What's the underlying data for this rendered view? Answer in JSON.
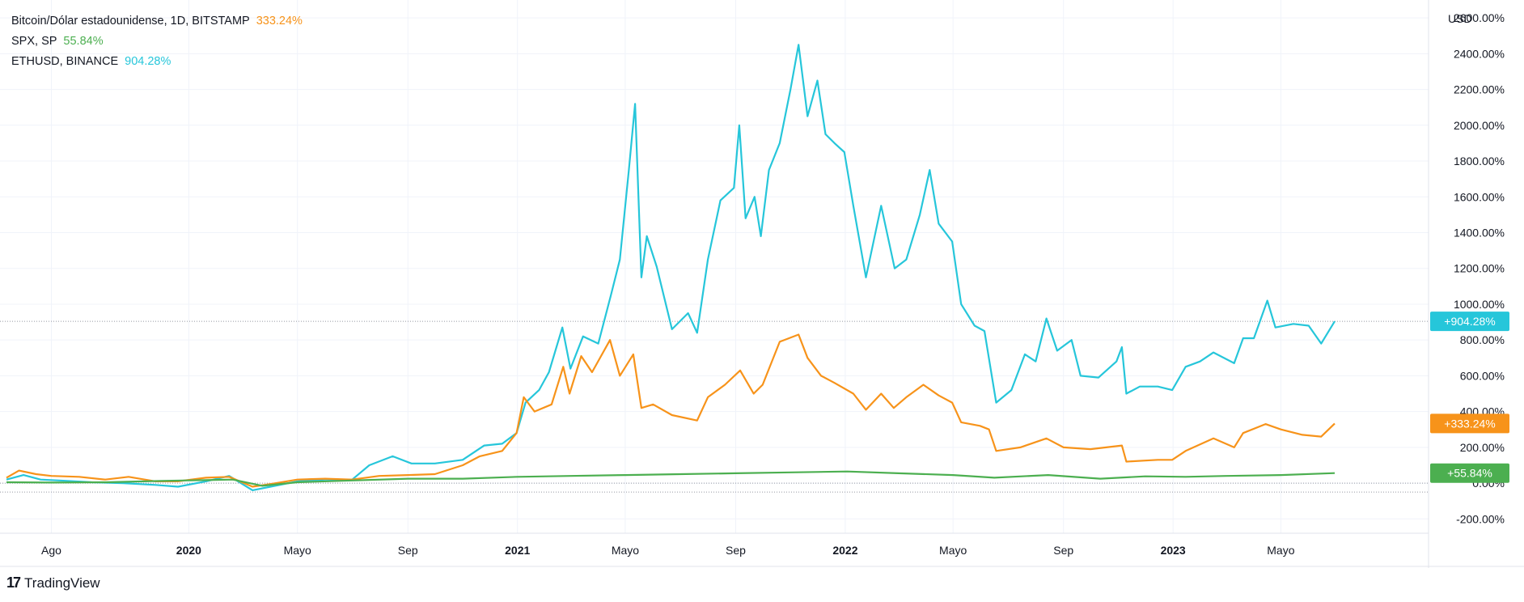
{
  "legend": [
    {
      "label": "Bitcoin/Dólar estadounidense, 1D, BITSTAMP",
      "value": "333.24%",
      "color": "#f7931a"
    },
    {
      "label": "SPX, SP",
      "value": "55.84%",
      "color": "#4caf50"
    },
    {
      "label": "ETHUSD, BINANCE",
      "value": "904.28%",
      "color": "#26c6da"
    }
  ],
  "axis_unit": "USD",
  "brand": {
    "logo": "17",
    "name": "TradingView"
  },
  "chart_data": {
    "type": "line",
    "title": "",
    "xlabel": "",
    "ylabel": "USD",
    "ylim": [
      -280,
      2700
    ],
    "y_ticks": [
      "2600.00%",
      "2400.00%",
      "2200.00%",
      "2000.00%",
      "1800.00%",
      "1600.00%",
      "1400.00%",
      "1200.00%",
      "1000.00%",
      "800.00%",
      "600.00%",
      "400.00%",
      "200.00%",
      "0.00%",
      "-200.00%"
    ],
    "y_tick_values": [
      2600,
      2400,
      2200,
      2000,
      1800,
      1600,
      1400,
      1200,
      1000,
      800,
      600,
      400,
      200,
      0,
      -200
    ],
    "x_range": [
      "2019-06-12",
      "2023-06-30"
    ],
    "x_ticks": [
      {
        "label": "Ago",
        "date": "2019-08-01",
        "bold": false
      },
      {
        "label": "2020",
        "date": "2020-01-01",
        "bold": true
      },
      {
        "label": "Mayo",
        "date": "2020-05-01",
        "bold": false
      },
      {
        "label": "Sep",
        "date": "2020-09-01",
        "bold": false
      },
      {
        "label": "2021",
        "date": "2021-01-01",
        "bold": true
      },
      {
        "label": "Mayo",
        "date": "2021-05-01",
        "bold": false
      },
      {
        "label": "Sep",
        "date": "2021-09-01",
        "bold": false
      },
      {
        "label": "2022",
        "date": "2022-01-01",
        "bold": true
      },
      {
        "label": "Mayo",
        "date": "2022-05-01",
        "bold": false
      },
      {
        "label": "Sep",
        "date": "2022-09-01",
        "bold": false
      },
      {
        "label": "2023",
        "date": "2023-01-01",
        "bold": true
      },
      {
        "label": "Mayo",
        "date": "2023-05-01",
        "bold": false
      }
    ],
    "reference_lines": [
      {
        "value": 0,
        "style": "dotted"
      },
      {
        "value": -50,
        "style": "dotted"
      },
      {
        "value": 904.28,
        "style": "dotted"
      }
    ],
    "series": [
      {
        "name": "ETHUSD, BINANCE",
        "color": "#26c6da",
        "last_label": "+904.28%",
        "points": [
          [
            "2019-06-12",
            20
          ],
          [
            "2019-07-01",
            45
          ],
          [
            "2019-07-20",
            20
          ],
          [
            "2019-08-10",
            15
          ],
          [
            "2019-09-15",
            5
          ],
          [
            "2019-10-20",
            0
          ],
          [
            "2019-11-25",
            -10
          ],
          [
            "2019-12-20",
            -20
          ],
          [
            "2020-01-20",
            10
          ],
          [
            "2020-02-15",
            40
          ],
          [
            "2020-03-12",
            -40
          ],
          [
            "2020-04-01",
            -20
          ],
          [
            "2020-05-01",
            10
          ],
          [
            "2020-06-01",
            20
          ],
          [
            "2020-07-01",
            20
          ],
          [
            "2020-07-20",
            100
          ],
          [
            "2020-08-15",
            150
          ],
          [
            "2020-09-05",
            110
          ],
          [
            "2020-10-01",
            110
          ],
          [
            "2020-11-01",
            130
          ],
          [
            "2020-11-25",
            210
          ],
          [
            "2020-12-15",
            220
          ],
          [
            "2020-12-31",
            280
          ],
          [
            "2021-01-10",
            450
          ],
          [
            "2021-01-25",
            520
          ],
          [
            "2021-02-05",
            620
          ],
          [
            "2021-02-20",
            870
          ],
          [
            "2021-03-01",
            640
          ],
          [
            "2021-03-15",
            820
          ],
          [
            "2021-04-01",
            780
          ],
          [
            "2021-04-15",
            1050
          ],
          [
            "2021-04-25",
            1250
          ],
          [
            "2021-05-05",
            1750
          ],
          [
            "2021-05-12",
            2120
          ],
          [
            "2021-05-19",
            1150
          ],
          [
            "2021-05-25",
            1380
          ],
          [
            "2021-06-05",
            1210
          ],
          [
            "2021-06-22",
            860
          ],
          [
            "2021-07-10",
            950
          ],
          [
            "2021-07-20",
            840
          ],
          [
            "2021-08-01",
            1250
          ],
          [
            "2021-08-15",
            1580
          ],
          [
            "2021-08-30",
            1650
          ],
          [
            "2021-09-05",
            2000
          ],
          [
            "2021-09-12",
            1480
          ],
          [
            "2021-09-22",
            1600
          ],
          [
            "2021-09-29",
            1380
          ],
          [
            "2021-10-08",
            1750
          ],
          [
            "2021-10-20",
            1900
          ],
          [
            "2021-11-01",
            2200
          ],
          [
            "2021-11-10",
            2450
          ],
          [
            "2021-11-20",
            2050
          ],
          [
            "2021-12-01",
            2250
          ],
          [
            "2021-12-10",
            1950
          ],
          [
            "2021-12-20",
            1900
          ],
          [
            "2021-12-31",
            1850
          ],
          [
            "2022-01-10",
            1550
          ],
          [
            "2022-01-24",
            1150
          ],
          [
            "2022-02-10",
            1550
          ],
          [
            "2022-02-25",
            1200
          ],
          [
            "2022-03-10",
            1250
          ],
          [
            "2022-03-25",
            1500
          ],
          [
            "2022-04-05",
            1750
          ],
          [
            "2022-04-15",
            1450
          ],
          [
            "2022-04-30",
            1350
          ],
          [
            "2022-05-10",
            1000
          ],
          [
            "2022-05-25",
            880
          ],
          [
            "2022-06-05",
            850
          ],
          [
            "2022-06-18",
            450
          ],
          [
            "2022-07-05",
            520
          ],
          [
            "2022-07-20",
            720
          ],
          [
            "2022-08-01",
            680
          ],
          [
            "2022-08-13",
            920
          ],
          [
            "2022-08-25",
            740
          ],
          [
            "2022-09-10",
            800
          ],
          [
            "2022-09-20",
            600
          ],
          [
            "2022-10-10",
            590
          ],
          [
            "2022-10-30",
            680
          ],
          [
            "2022-11-05",
            760
          ],
          [
            "2022-11-10",
            500
          ],
          [
            "2022-11-25",
            540
          ],
          [
            "2022-12-15",
            540
          ],
          [
            "2022-12-31",
            520
          ],
          [
            "2023-01-15",
            650
          ],
          [
            "2023-01-31",
            680
          ],
          [
            "2023-02-15",
            730
          ],
          [
            "2023-03-10",
            670
          ],
          [
            "2023-03-20",
            810
          ],
          [
            "2023-04-01",
            810
          ],
          [
            "2023-04-16",
            1020
          ],
          [
            "2023-04-25",
            870
          ],
          [
            "2023-05-15",
            890
          ],
          [
            "2023-06-01",
            880
          ],
          [
            "2023-06-15",
            780
          ],
          [
            "2023-06-30",
            904.28
          ]
        ]
      },
      {
        "name": "Bitcoin/Dólar estadounidense, 1D, BITSTAMP",
        "color": "#f7931a",
        "last_label": "+333.24%",
        "points": [
          [
            "2019-06-12",
            30
          ],
          [
            "2019-06-26",
            70
          ],
          [
            "2019-07-15",
            50
          ],
          [
            "2019-08-01",
            40
          ],
          [
            "2019-09-01",
            35
          ],
          [
            "2019-09-30",
            20
          ],
          [
            "2019-10-26",
            35
          ],
          [
            "2019-11-25",
            10
          ],
          [
            "2019-12-20",
            10
          ],
          [
            "2020-01-20",
            30
          ],
          [
            "2020-02-15",
            35
          ],
          [
            "2020-03-12",
            -20
          ],
          [
            "2020-04-01",
            -5
          ],
          [
            "2020-05-01",
            20
          ],
          [
            "2020-06-01",
            25
          ],
          [
            "2020-07-01",
            20
          ],
          [
            "2020-07-31",
            40
          ],
          [
            "2020-09-01",
            45
          ],
          [
            "2020-10-01",
            50
          ],
          [
            "2020-11-01",
            100
          ],
          [
            "2020-11-20",
            150
          ],
          [
            "2020-12-15",
            180
          ],
          [
            "2020-12-31",
            280
          ],
          [
            "2021-01-08",
            480
          ],
          [
            "2021-01-20",
            400
          ],
          [
            "2021-02-08",
            440
          ],
          [
            "2021-02-21",
            650
          ],
          [
            "2021-02-28",
            500
          ],
          [
            "2021-03-13",
            710
          ],
          [
            "2021-03-25",
            620
          ],
          [
            "2021-04-14",
            800
          ],
          [
            "2021-04-25",
            600
          ],
          [
            "2021-05-10",
            720
          ],
          [
            "2021-05-19",
            420
          ],
          [
            "2021-06-01",
            440
          ],
          [
            "2021-06-22",
            380
          ],
          [
            "2021-07-20",
            350
          ],
          [
            "2021-08-01",
            480
          ],
          [
            "2021-08-20",
            550
          ],
          [
            "2021-09-06",
            630
          ],
          [
            "2021-09-21",
            500
          ],
          [
            "2021-10-01",
            550
          ],
          [
            "2021-10-20",
            790
          ],
          [
            "2021-11-10",
            830
          ],
          [
            "2021-11-20",
            700
          ],
          [
            "2021-12-05",
            600
          ],
          [
            "2021-12-20",
            560
          ],
          [
            "2022-01-10",
            500
          ],
          [
            "2022-01-24",
            410
          ],
          [
            "2022-02-10",
            500
          ],
          [
            "2022-02-24",
            420
          ],
          [
            "2022-03-10",
            480
          ],
          [
            "2022-03-29",
            550
          ],
          [
            "2022-04-15",
            490
          ],
          [
            "2022-04-30",
            450
          ],
          [
            "2022-05-10",
            340
          ],
          [
            "2022-05-31",
            320
          ],
          [
            "2022-06-10",
            300
          ],
          [
            "2022-06-18",
            180
          ],
          [
            "2022-07-15",
            200
          ],
          [
            "2022-08-13",
            250
          ],
          [
            "2022-09-01",
            200
          ],
          [
            "2022-10-01",
            190
          ],
          [
            "2022-11-05",
            210
          ],
          [
            "2022-11-10",
            120
          ],
          [
            "2022-12-15",
            130
          ],
          [
            "2022-12-31",
            130
          ],
          [
            "2023-01-15",
            180
          ],
          [
            "2023-02-15",
            250
          ],
          [
            "2023-03-10",
            200
          ],
          [
            "2023-03-20",
            280
          ],
          [
            "2023-04-14",
            330
          ],
          [
            "2023-05-01",
            300
          ],
          [
            "2023-05-25",
            270
          ],
          [
            "2023-06-15",
            260
          ],
          [
            "2023-06-30",
            333.24
          ]
        ]
      },
      {
        "name": "SPX, SP",
        "color": "#4caf50",
        "last_label": "+55.84%",
        "points": [
          [
            "2019-06-12",
            5
          ],
          [
            "2019-08-01",
            3
          ],
          [
            "2019-10-01",
            5
          ],
          [
            "2019-12-01",
            12
          ],
          [
            "2020-02-19",
            20
          ],
          [
            "2020-03-23",
            -15
          ],
          [
            "2020-05-01",
            5
          ],
          [
            "2020-07-01",
            15
          ],
          [
            "2020-09-01",
            25
          ],
          [
            "2020-11-01",
            25
          ],
          [
            "2021-01-01",
            35
          ],
          [
            "2021-03-01",
            40
          ],
          [
            "2021-05-01",
            45
          ],
          [
            "2021-07-01",
            50
          ],
          [
            "2021-09-01",
            55
          ],
          [
            "2021-11-01",
            60
          ],
          [
            "2022-01-03",
            65
          ],
          [
            "2022-03-01",
            55
          ],
          [
            "2022-05-01",
            45
          ],
          [
            "2022-06-16",
            30
          ],
          [
            "2022-08-15",
            45
          ],
          [
            "2022-10-12",
            25
          ],
          [
            "2022-12-01",
            38
          ],
          [
            "2023-01-15",
            35
          ],
          [
            "2023-03-01",
            40
          ],
          [
            "2023-05-01",
            45
          ],
          [
            "2023-06-30",
            55.84
          ]
        ]
      }
    ]
  }
}
